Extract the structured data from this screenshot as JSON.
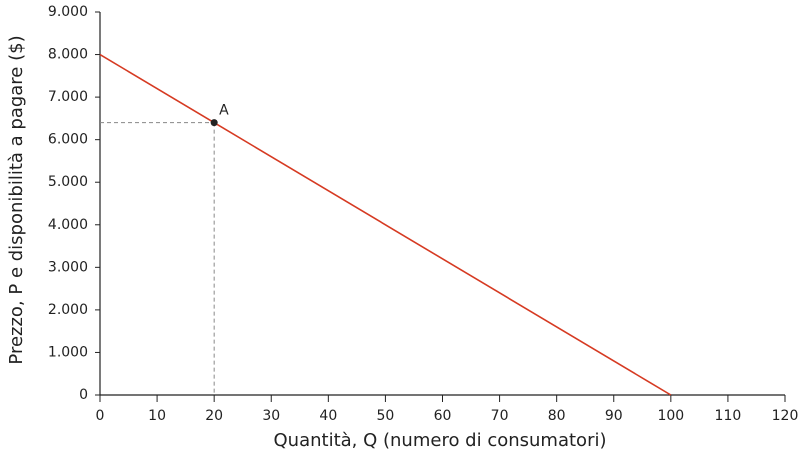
{
  "chart_data": {
    "type": "line",
    "xlabel": "Quantità, Q (numero di consumatori)",
    "ylabel": "Prezzo, P e disponibilità a pagare ($)",
    "xlim": [
      0,
      120
    ],
    "ylim": [
      0,
      9000
    ],
    "xticks": [
      0,
      10,
      20,
      30,
      40,
      50,
      60,
      70,
      80,
      90,
      100,
      110,
      120
    ],
    "yticks": [
      0,
      {
        "value": 1000,
        "label": "1.000"
      },
      {
        "value": 2000,
        "label": "2.000"
      },
      {
        "value": 3000,
        "label": "3.000"
      },
      {
        "value": 4000,
        "label": "4.000"
      },
      {
        "value": 5000,
        "label": "5.000"
      },
      {
        "value": 6000,
        "label": "6.000"
      },
      {
        "value": 7000,
        "label": "7.000"
      },
      {
        "value": 8000,
        "label": "8.000"
      },
      {
        "value": 9000,
        "label": "9.000"
      }
    ],
    "series": [
      {
        "x": [
          0,
          100
        ],
        "values": [
          8000,
          0
        ],
        "color": "#d63a22"
      }
    ],
    "point": {
      "x": 20,
      "y": 6400,
      "label": "A",
      "color": "#222222"
    }
  }
}
